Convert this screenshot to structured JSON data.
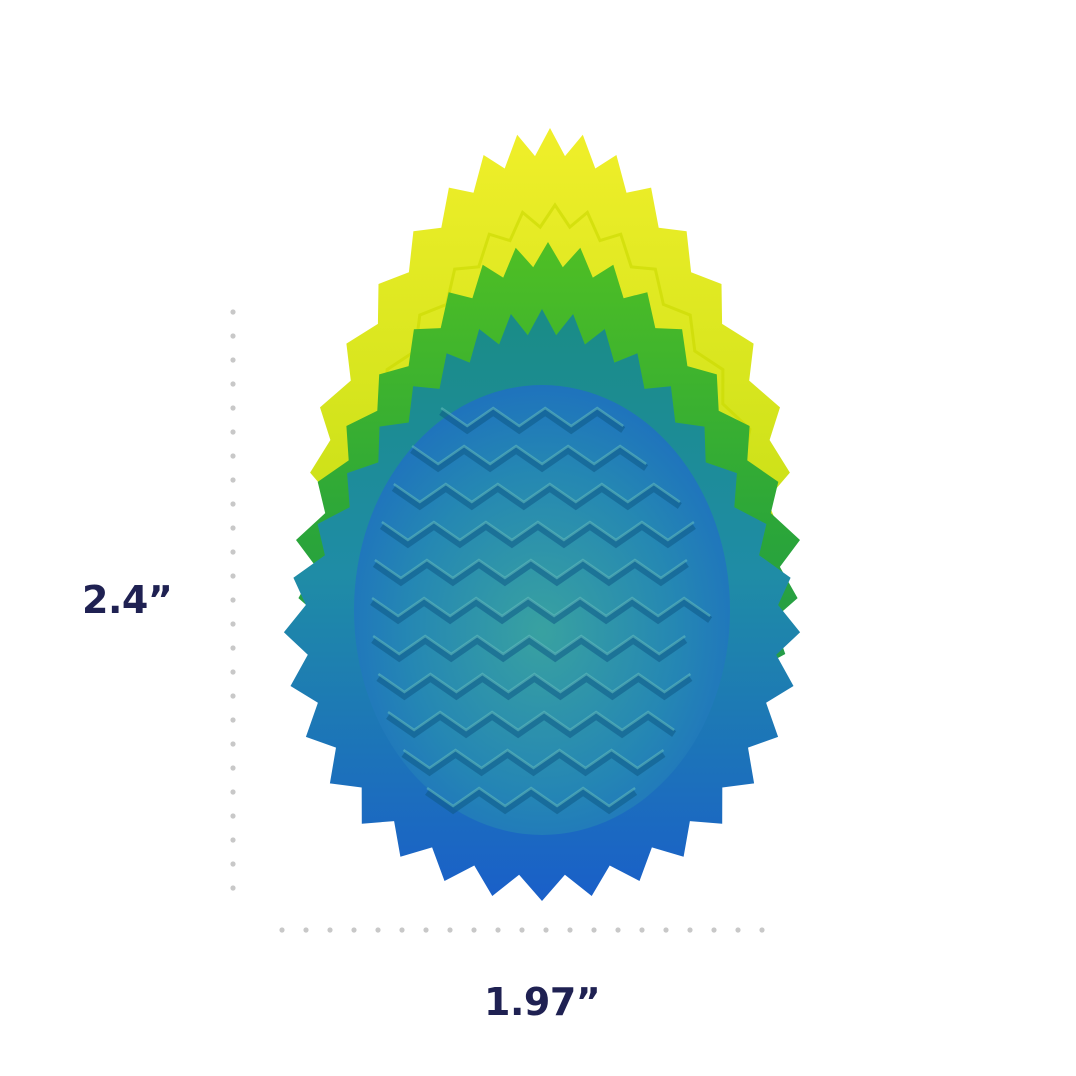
{
  "dimensions": {
    "height_label": "2.4”",
    "width_label": "1.97”"
  },
  "colors": {
    "label_text": "#1f2152",
    "dot_guide": "#c8c8c8",
    "toy_yellow": "#e6ea1f",
    "toy_green": "#3aa82e",
    "toy_teal": "#1f8a8a",
    "toy_blue": "#1e63c8"
  }
}
